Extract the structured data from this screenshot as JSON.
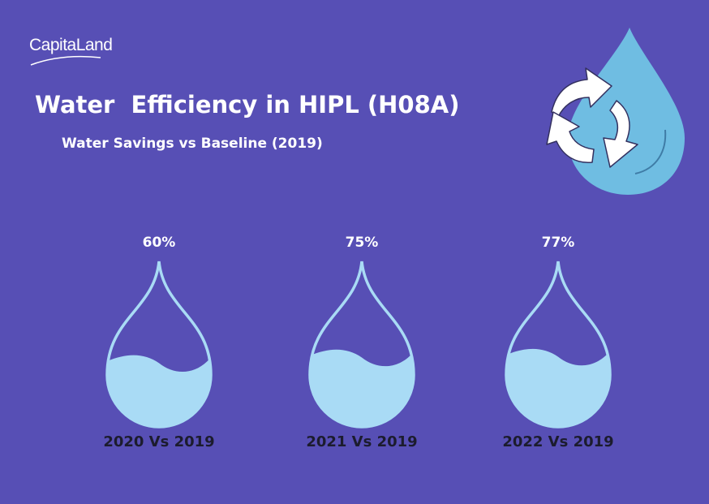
{
  "brand": {
    "logo_text": "CapitaLand"
  },
  "header": {
    "title": "Water  Efficiency in HIPL (H08A)",
    "subtitle": "Water Savings vs Baseline (2019)"
  },
  "colors": {
    "background": "#574fb5",
    "drop_outline": "#a9dbf5",
    "drop_fill": "#a9dbf5",
    "hero_drop": "#6fbde2",
    "text_light": "#ffffff",
    "text_dark": "#1c1c2e"
  },
  "icons": {
    "hero": "water-drop-recycle-icon"
  },
  "chart_data": {
    "type": "bar",
    "title": "Water Savings vs Baseline (2019)",
    "categories": [
      "2020 Vs 2019",
      "2021 Vs 2019",
      "2022 Vs 2019"
    ],
    "values": [
      60,
      75,
      77
    ],
    "value_labels": [
      "60%",
      "75%",
      "77%"
    ],
    "unit": "%",
    "ylim": [
      0,
      100
    ],
    "xlabel": "",
    "ylabel": ""
  }
}
